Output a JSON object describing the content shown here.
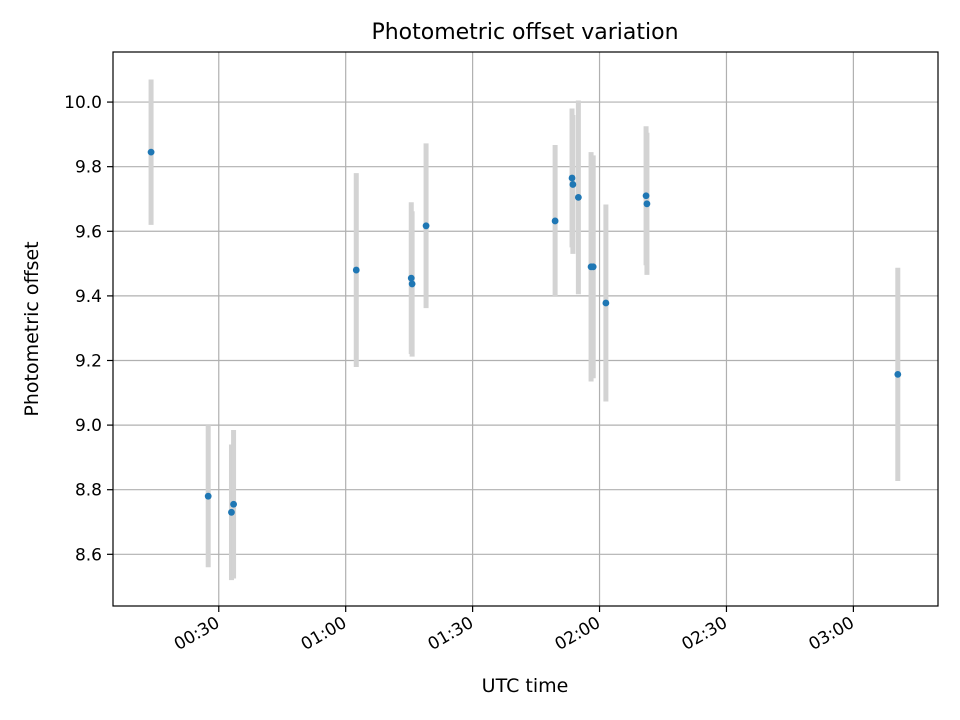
{
  "chart_data": {
    "type": "scatter",
    "title": "Photometric offset variation",
    "xlabel": "UTC time",
    "ylabel": "Photometric offset",
    "x_axis_kind": "time",
    "xlim": [
      "00:05",
      "03:20"
    ],
    "ylim": [
      8.44,
      10.155
    ],
    "grid": true,
    "x_ticks": [
      "00:30",
      "01:00",
      "01:30",
      "02:00",
      "02:30",
      "03:00"
    ],
    "y_ticks": [
      "8.6",
      "8.8",
      "9.0",
      "9.2",
      "9.4",
      "9.6",
      "9.8",
      "10.0"
    ],
    "marker_color": "#1f77b4",
    "errorbar_color": "#d3d3d3",
    "points": [
      {
        "t": "00:14",
        "y": 9.845,
        "err": 0.225
      },
      {
        "t": "00:27.5",
        "y": 8.78,
        "err": 0.22
      },
      {
        "t": "00:33",
        "y": 8.73,
        "err": 0.21
      },
      {
        "t": "00:33.5",
        "y": 8.755,
        "err": 0.23
      },
      {
        "t": "01:02.5",
        "y": 9.48,
        "err": 0.3
      },
      {
        "t": "01:15.5",
        "y": 9.455,
        "err": 0.235
      },
      {
        "t": "01:15.7",
        "y": 9.437,
        "err": 0.225
      },
      {
        "t": "01:19",
        "y": 9.617,
        "err": 0.255
      },
      {
        "t": "01:49.5",
        "y": 9.632,
        "err": 0.235
      },
      {
        "t": "01:53.5",
        "y": 9.765,
        "err": 0.215
      },
      {
        "t": "01:53.7",
        "y": 9.745,
        "err": 0.215
      },
      {
        "t": "01:55",
        "y": 9.705,
        "err": 0.3
      },
      {
        "t": "01:58",
        "y": 9.49,
        "err": 0.355
      },
      {
        "t": "01:58.5",
        "y": 9.49,
        "err": 0.345
      },
      {
        "t": "02:01.5",
        "y": 9.378,
        "err": 0.305
      },
      {
        "t": "02:11",
        "y": 9.71,
        "err": 0.215
      },
      {
        "t": "02:11.2",
        "y": 9.685,
        "err": 0.22
      },
      {
        "t": "03:10.5",
        "y": 9.157,
        "err": 0.33
      }
    ]
  }
}
